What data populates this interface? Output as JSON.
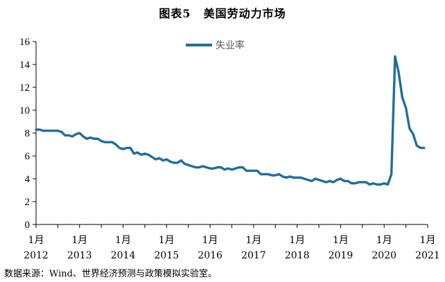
{
  "figure": {
    "label": "图表5",
    "title": "美国劳动力市场"
  },
  "source_note": "数据来源：Wind、世界经济预测与政策模拟实验室。",
  "chart_data": {
    "type": "line",
    "ylim": [
      0,
      16
    ],
    "yticks": [
      "0",
      "2",
      "4",
      "6",
      "8",
      "10",
      "12",
      "14",
      "16"
    ],
    "x_ticks": [
      {
        "month": "1月",
        "year": "2012"
      },
      {
        "month": "1月",
        "year": "2013"
      },
      {
        "month": "1月",
        "year": "2014"
      },
      {
        "month": "1月",
        "year": "2015"
      },
      {
        "month": "1月",
        "year": "2016"
      },
      {
        "month": "1月",
        "year": "2017"
      },
      {
        "month": "1月",
        "year": "2018"
      },
      {
        "month": "1月",
        "year": "2019"
      },
      {
        "month": "1月",
        "year": "2020"
      },
      {
        "month": "1月",
        "year": "2021"
      }
    ],
    "x_start": "2012-01",
    "x_end": "2021-01",
    "legend": "top-center",
    "grid": false,
    "series": [
      {
        "name": "失业率",
        "color": "#1F6E9C",
        "values": [
          8.3,
          8.3,
          8.2,
          8.2,
          8.2,
          8.2,
          8.2,
          8.1,
          7.8,
          7.8,
          7.7,
          7.9,
          8.0,
          7.7,
          7.5,
          7.6,
          7.5,
          7.5,
          7.3,
          7.2,
          7.2,
          7.2,
          7.0,
          6.7,
          6.6,
          6.7,
          6.7,
          6.2,
          6.3,
          6.1,
          6.2,
          6.1,
          5.9,
          5.7,
          5.8,
          5.6,
          5.7,
          5.5,
          5.4,
          5.4,
          5.6,
          5.3,
          5.2,
          5.1,
          5.0,
          5.0,
          5.1,
          5.0,
          4.9,
          4.9,
          5.0,
          5.0,
          4.8,
          4.9,
          4.8,
          4.9,
          5.0,
          5.0,
          4.7,
          4.7,
          4.7,
          4.7,
          4.4,
          4.4,
          4.4,
          4.3,
          4.3,
          4.4,
          4.2,
          4.1,
          4.2,
          4.1,
          4.1,
          4.1,
          4.0,
          3.9,
          3.8,
          4.0,
          3.9,
          3.8,
          3.7,
          3.8,
          3.7,
          3.9,
          4.0,
          3.8,
          3.8,
          3.6,
          3.6,
          3.7,
          3.7,
          3.7,
          3.5,
          3.6,
          3.5,
          3.5,
          3.6,
          3.5,
          4.4,
          14.7,
          13.3,
          11.1,
          10.2,
          8.4,
          7.9,
          6.9,
          6.7,
          6.7
        ]
      }
    ]
  }
}
